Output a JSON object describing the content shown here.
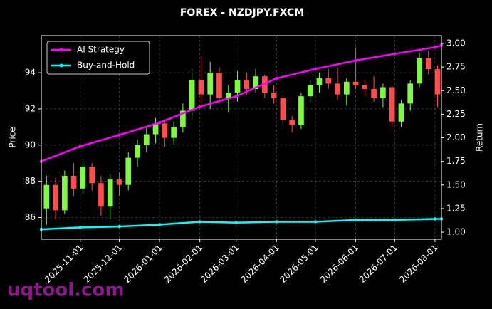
{
  "chart_data": {
    "type": "candlestick",
    "title": "FOREX - NZDJPY.FXCM",
    "y_label": "Price",
    "y2_label": "Return",
    "watermark": "uqtool.com",
    "xlim": [
      "2025-10-02",
      "2026-08-06"
    ],
    "xticks": [
      "2025-11-01",
      "2025-12-01",
      "2026-01-01",
      "2026-02-01",
      "2026-03-01",
      "2026-04-01",
      "2026-05-01",
      "2026-06-01",
      "2026-07-01",
      "2026-08-01"
    ],
    "ylim": [
      84.8,
      96.05
    ],
    "yticks": [
      86,
      88,
      90,
      92,
      94
    ],
    "y2lim": [
      0.925,
      3.083
    ],
    "y2ticks": [
      {
        "value": 1,
        "label": "1.00"
      },
      {
        "value": 1.25,
        "label": "1.25"
      },
      {
        "value": 1.5,
        "label": "1.50"
      },
      {
        "value": 1.75,
        "label": "1.75"
      },
      {
        "value": 2,
        "label": "2.00"
      },
      {
        "value": 2.25,
        "label": "2.25"
      },
      {
        "value": 2.5,
        "label": "2.50"
      },
      {
        "value": 2.75,
        "label": "2.75"
      },
      {
        "value": 3,
        "label": "3.00"
      }
    ],
    "grid": true,
    "legend": "upper-left",
    "up_color": "#7cfc3c",
    "down_color": "#ff4d4d",
    "candles": {
      "x": [
        "2025-10-06",
        "2025-10-13",
        "2025-10-20",
        "2025-10-27",
        "2025-11-03",
        "2025-11-10",
        "2025-11-17",
        "2025-11-24",
        "2025-12-01",
        "2025-12-08",
        "2025-12-15",
        "2025-12-22",
        "2025-12-29",
        "2026-01-05",
        "2026-01-12",
        "2026-01-19",
        "2026-01-26",
        "2026-02-02",
        "2026-02-09",
        "2026-02-16",
        "2026-02-23",
        "2026-03-02",
        "2026-03-09",
        "2026-03-16",
        "2026-03-23",
        "2026-03-30",
        "2026-04-06",
        "2026-04-13",
        "2026-04-20",
        "2026-04-27",
        "2026-05-04",
        "2026-05-11",
        "2026-05-18",
        "2026-05-25",
        "2026-06-01",
        "2026-06-08",
        "2026-06-15",
        "2026-06-22",
        "2026-06-29",
        "2026-07-06",
        "2026-07-13",
        "2026-07-20",
        "2026-07-27",
        "2026-08-03"
      ],
      "open": [
        86.5,
        87.8,
        86.4,
        88.3,
        87.6,
        88.8,
        87.9,
        86.6,
        88.1,
        87.8,
        89.3,
        90.0,
        90.6,
        91.2,
        90.4,
        91.0,
        91.9,
        93.6,
        92.8,
        94.0,
        92.6,
        92.9,
        93.6,
        93.1,
        93.8,
        92.9,
        92.6,
        91.4,
        91.1,
        92.7,
        93.3,
        93.7,
        93.4,
        92.8,
        93.5,
        93.3,
        93.1,
        92.6,
        93.2,
        91.3,
        92.3,
        93.4,
        94.8,
        94.2
      ],
      "high": [
        88.3,
        88.2,
        88.6,
        89.0,
        89.1,
        89.0,
        88.3,
        88.4,
        88.5,
        89.6,
        90.3,
        91.0,
        91.5,
        91.3,
        91.3,
        92.3,
        94.2,
        94.9,
        94.6,
        94.3,
        93.3,
        94.1,
        94.0,
        94.2,
        93.9,
        93.3,
        92.8,
        91.6,
        92.9,
        93.6,
        94.0,
        94.2,
        94.3,
        93.7,
        95.4,
        93.6,
        93.8,
        93.4,
        93.3,
        92.5,
        93.6,
        95.1,
        95.2,
        94.4
      ],
      "low": [
        85.6,
        85.9,
        86.2,
        87.2,
        87.3,
        87.5,
        86.1,
        85.9,
        87.2,
        87.5,
        88.8,
        89.6,
        90.1,
        89.9,
        90.0,
        90.7,
        91.5,
        92.3,
        92.0,
        92.3,
        91.8,
        92.4,
        92.8,
        92.9,
        92.6,
        92.3,
        91.0,
        90.7,
        90.9,
        92.4,
        92.9,
        93.1,
        92.5,
        92.2,
        93.1,
        92.7,
        92.4,
        92.1,
        91.0,
        91.0,
        91.9,
        93.2,
        93.9,
        92.1
      ],
      "close": [
        87.8,
        86.4,
        88.3,
        87.6,
        88.8,
        87.9,
        86.6,
        88.1,
        87.8,
        89.3,
        90.0,
        90.6,
        91.2,
        90.4,
        91.0,
        91.9,
        93.6,
        92.8,
        94.0,
        92.6,
        92.9,
        93.6,
        93.1,
        93.8,
        92.9,
        92.6,
        91.4,
        91.1,
        92.7,
        93.3,
        93.7,
        93.4,
        92.8,
        93.5,
        93.3,
        93.1,
        92.6,
        93.2,
        91.3,
        92.3,
        93.4,
        94.8,
        94.2,
        92.8
      ]
    },
    "series": [
      {
        "name": "AI Strategy",
        "color": "#ff00ff",
        "axis": "y2",
        "x": [
          "2025-10-02",
          "2025-11-01",
          "2025-12-01",
          "2026-01-01",
          "2026-02-01",
          "2026-03-01",
          "2026-04-01",
          "2026-05-01",
          "2026-06-01",
          "2026-07-01",
          "2026-08-01",
          "2026-08-06"
        ],
        "values": [
          1.75,
          1.91,
          2.03,
          2.16,
          2.33,
          2.44,
          2.63,
          2.73,
          2.82,
          2.89,
          2.96,
          2.98
        ]
      },
      {
        "name": "Buy-and-Hold",
        "color": "#00ffff",
        "axis": "y2",
        "x": [
          "2025-10-02",
          "2025-11-01",
          "2025-12-01",
          "2026-01-01",
          "2026-02-01",
          "2026-03-01",
          "2026-04-01",
          "2026-05-01",
          "2026-06-01",
          "2026-07-01",
          "2026-08-01",
          "2026-08-06"
        ],
        "values": [
          1.03,
          1.05,
          1.06,
          1.08,
          1.11,
          1.1,
          1.11,
          1.11,
          1.13,
          1.13,
          1.14,
          1.14
        ]
      }
    ]
  }
}
